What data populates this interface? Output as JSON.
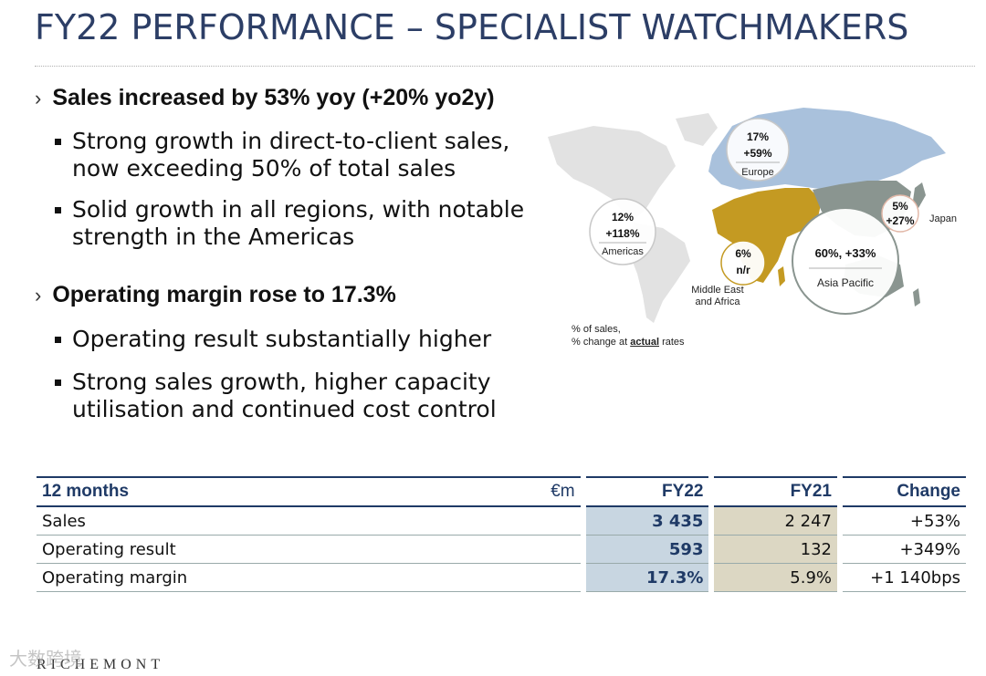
{
  "title": "FY22 PERFORMANCE – SPECIALIST WATCHMAKERS",
  "sections": [
    {
      "heading": "Sales increased by 53% yoy (+20% yo2y)",
      "bullets": [
        [
          "Strong growth in direct-to-client sales,",
          "now exceeding 50% of total sales"
        ],
        [
          "Solid growth in all regions, with notable",
          "strength in the Americas"
        ]
      ]
    },
    {
      "heading": "Operating margin rose to 17.3%",
      "bullets": [
        [
          "Operating result substantially higher"
        ],
        [
          "Strong sales growth, higher capacity",
          "utilisation and continued cost control"
        ]
      ]
    }
  ],
  "map": {
    "regions": {
      "europe": {
        "share": "17%",
        "change": "+59%",
        "label": "Europe"
      },
      "americas": {
        "share": "12%",
        "change": "+118%",
        "label": "Americas"
      },
      "mea": {
        "share": "6%",
        "change": "n/r",
        "label": [
          "Middle East",
          "and Africa"
        ]
      },
      "asia": {
        "share_change": "60%, +33%",
        "label": "Asia Pacific"
      },
      "japan": {
        "share": "5%",
        "change": "+27%",
        "label": "Japan"
      }
    },
    "note": {
      "line1": "% of sales,",
      "line2_pre": "% change at ",
      "line2_bold": "actual",
      "line2_post": " rates"
    },
    "colors": {
      "europe_asia": "#a9c1dc",
      "mea": "#c49a22",
      "asiapac": "#8a9590",
      "grey": "#e2e2e2"
    }
  },
  "table": {
    "header": {
      "label": "12 months",
      "unit": "€m",
      "fy22": "FY22",
      "fy21": "FY21",
      "change": "Change"
    },
    "rows": [
      {
        "label": "Sales",
        "fy22": "3 435",
        "fy21": "2 247",
        "change": "+53%"
      },
      {
        "label": "Operating result",
        "fy22": "593",
        "fy21": "132",
        "change": "+349%"
      },
      {
        "label": "Operating margin",
        "fy22": "17.3%",
        "fy21": "5.9%",
        "change": "+1 140bps"
      }
    ]
  },
  "footer": {
    "logo": "RICHEMONT",
    "watermark": "大数跨境"
  }
}
